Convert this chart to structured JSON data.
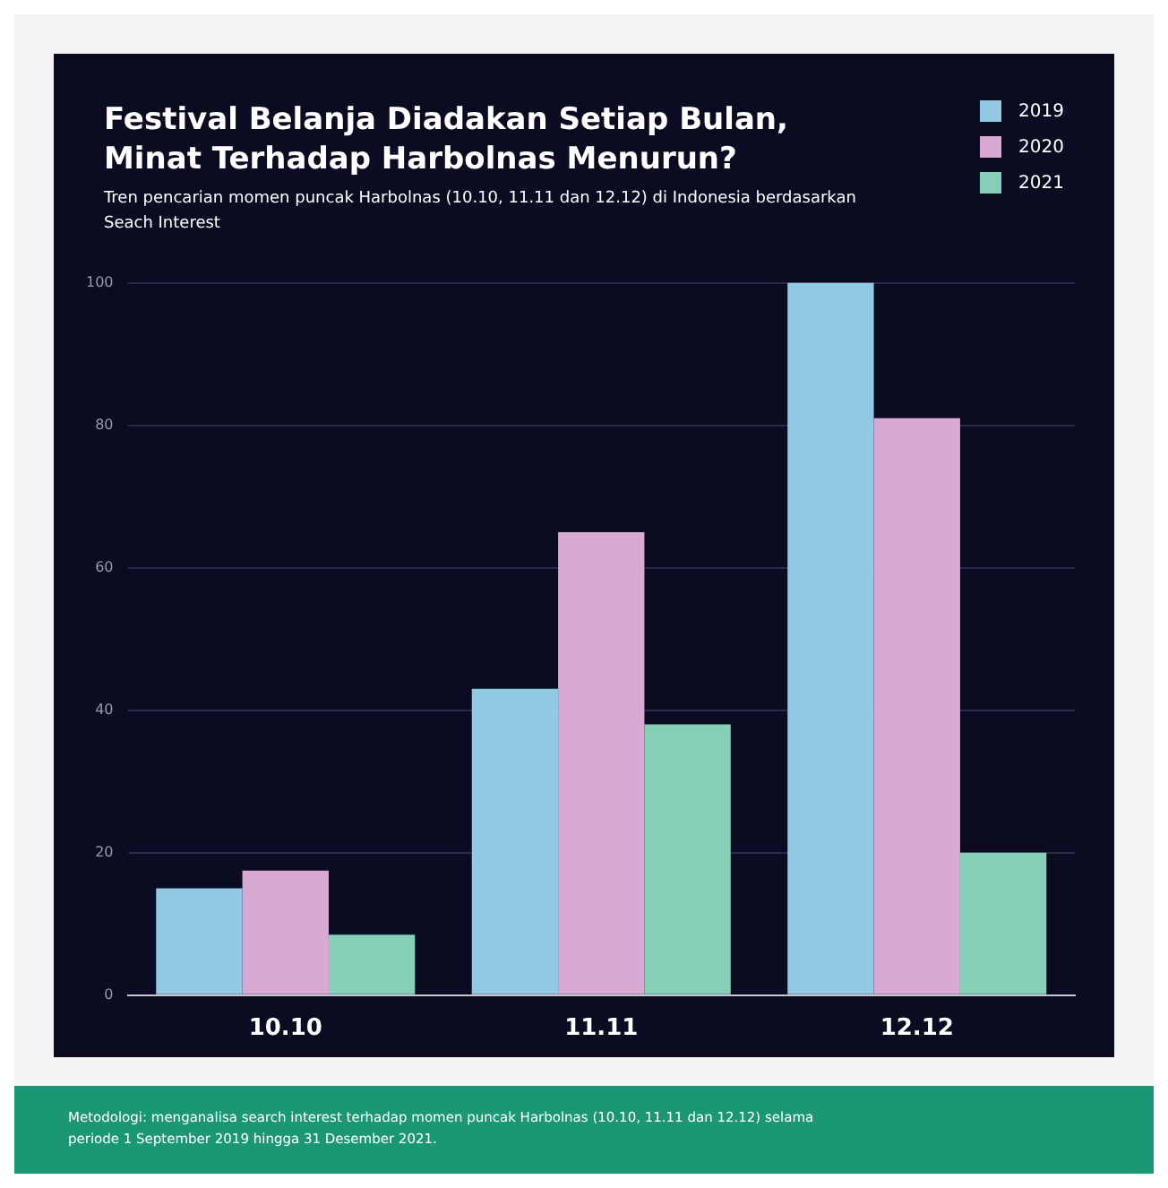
{
  "chart_data": {
    "type": "bar",
    "title": "Festival Belanja Diadakan Setiap Bulan, Minat Terhadap Harbolnas Menurun?",
    "subtitle": "Tren pencarian momen puncak Harbolnas (10.10, 11.11 dan 12.12) di Indonesia berdasarkan Seach Interest",
    "categories": [
      "10.10",
      "11.11",
      "12.12"
    ],
    "series": [
      {
        "name": "2019",
        "color": "#93c9e2",
        "values": [
          15,
          43,
          100
        ]
      },
      {
        "name": "2020",
        "color": "#d8a9d3",
        "values": [
          17.5,
          65,
          81
        ]
      },
      {
        "name": "2021",
        "color": "#84cfb5",
        "values": [
          8.5,
          38,
          20
        ]
      }
    ],
    "ylim": [
      0,
      100
    ],
    "yticks": [
      0,
      20,
      40,
      60,
      80,
      100
    ],
    "grid": "y",
    "legend": "top right",
    "annotations": [
      "Metodologi: menganalisa search interest terhadap momen puncak Harbolnas (10.10, 11.11 dan 12.12) selama periode 1 September 2019 hingga 31 Desember 2021."
    ]
  }
}
